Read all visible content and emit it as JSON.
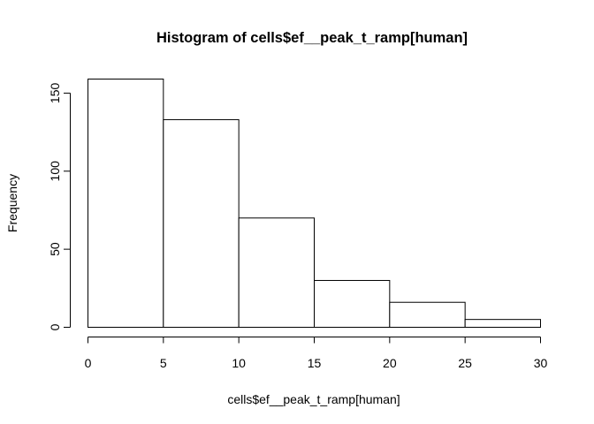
{
  "chart_data": {
    "type": "bar",
    "title": "Histogram of cells$ef__peak_t_ramp[human]",
    "xlabel": "cells$ef__peak_t_ramp[human]",
    "ylabel": "Frequency",
    "bins": [
      [
        0,
        5
      ],
      [
        5,
        10
      ],
      [
        10,
        15
      ],
      [
        15,
        20
      ],
      [
        20,
        25
      ],
      [
        25,
        30
      ]
    ],
    "values": [
      159,
      133,
      70,
      30,
      16,
      5
    ],
    "xlim": [
      0,
      30
    ],
    "ylim": [
      0,
      159
    ],
    "x_ticks": [
      0,
      5,
      10,
      15,
      20,
      25,
      30
    ],
    "y_ticks": [
      0,
      50,
      100,
      150
    ],
    "grid": false,
    "bar_fill": "#ffffff",
    "bar_stroke": "#000000"
  }
}
